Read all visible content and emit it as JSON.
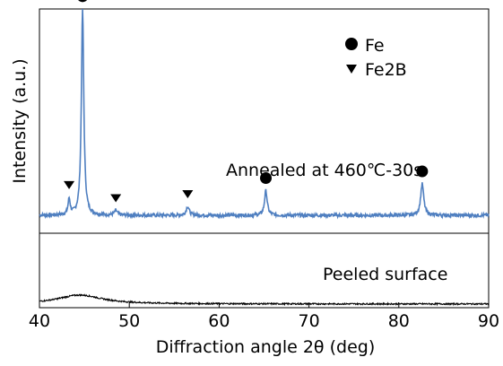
{
  "chart_data": {
    "type": "line",
    "xlabel": "Diffraction angle 2θ  (deg)",
    "ylabel": "Intensity  (a.u.)",
    "xlim": [
      40,
      90
    ],
    "xticks": [
      40,
      50,
      60,
      70,
      80,
      90
    ],
    "legend": [
      {
        "name": "Fe",
        "marker": "circle"
      },
      {
        "name": "Fe2B",
        "marker": "triangle-down"
      }
    ],
    "legend_position": "top-right",
    "series": [
      {
        "name": "Annealed at 460℃-30s",
        "color": "#4f7fc0",
        "baseline": 0.08,
        "noise": 0.015,
        "peaks": [
          {
            "x": 43.3,
            "h": 0.07,
            "w": 0.14
          },
          {
            "x": 44.8,
            "h": 0.92,
            "w": 0.16
          },
          {
            "x": 48.5,
            "h": 0.02,
            "w": 0.2
          },
          {
            "x": 56.5,
            "h": 0.04,
            "w": 0.2
          },
          {
            "x": 65.2,
            "h": 0.11,
            "w": 0.18
          },
          {
            "x": 82.6,
            "h": 0.14,
            "w": 0.2
          }
        ]
      },
      {
        "name": "Peeled surface",
        "color": "#000000",
        "baseline": 0.05,
        "noise": 0.02,
        "peaks": [
          {
            "x": 44.5,
            "h": 0.12,
            "w": 3.0
          }
        ]
      }
    ],
    "markers": [
      {
        "type": "circle",
        "x": 44.8,
        "panel": "top"
      },
      {
        "type": "triangle-down",
        "x": 43.3,
        "panel": "top"
      },
      {
        "type": "triangle-down",
        "x": 48.5,
        "panel": "top"
      },
      {
        "type": "triangle-down",
        "x": 56.5,
        "panel": "top"
      },
      {
        "type": "circle",
        "x": 65.2,
        "panel": "top"
      },
      {
        "type": "circle",
        "x": 82.6,
        "panel": "top"
      }
    ]
  }
}
